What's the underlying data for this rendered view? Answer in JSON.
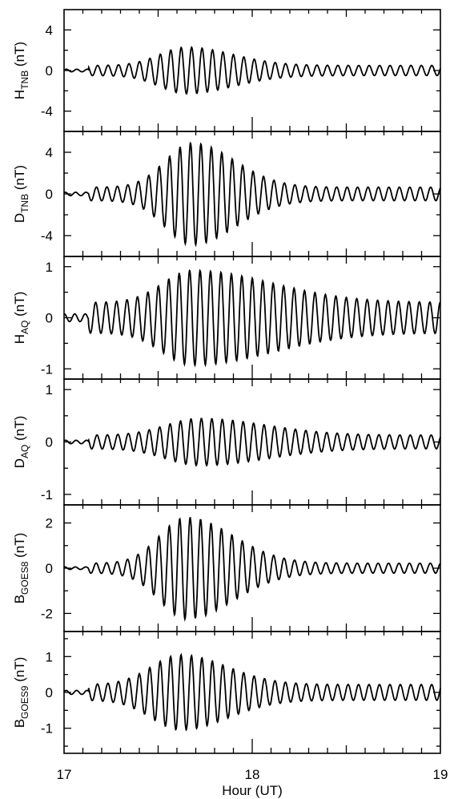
{
  "chart_data": {
    "type": "line",
    "xlabel": "Hour (UT)",
    "x_ticks": [
      "17",
      "18",
      "19"
    ],
    "xlim": [
      17,
      19
    ],
    "line_color": "#000000",
    "panels": [
      {
        "ylabel_main": "H",
        "ylabel_sub": "TNB",
        "ylabel_unit": " (nT)",
        "ylim": [
          -6,
          6
        ],
        "yticks": [
          4,
          0,
          -4
        ],
        "ytick_labels": [
          "4",
          "0",
          "-4"
        ],
        "waveform": {
          "period_hours": 0.0555,
          "phase": 0.2,
          "onset_hour": 17.13,
          "peak_amplitude": 2.3,
          "peak_hour": 17.65,
          "rise_width": 0.2,
          "background_amplitude": 0.5,
          "decay_width": 0.35
        }
      },
      {
        "ylabel_main": "D",
        "ylabel_sub": "TNB",
        "ylabel_unit": " (nT)",
        "ylim": [
          -6,
          6
        ],
        "yticks": [
          4,
          0,
          -4
        ],
        "ytick_labels": [
          "4",
          "0",
          "-4"
        ],
        "waveform": {
          "period_hours": 0.0555,
          "phase": 0.9,
          "onset_hour": 17.13,
          "peak_amplitude": 4.9,
          "peak_hour": 17.68,
          "rise_width": 0.2,
          "background_amplitude": 0.65,
          "decay_width": 0.32
        }
      },
      {
        "ylabel_main": "H",
        "ylabel_sub": "AQ",
        "ylabel_unit": " (nT)",
        "ylim": [
          -1.2,
          1.2
        ],
        "yticks": [
          1,
          0,
          -1
        ],
        "ytick_labels": [
          "1",
          "0",
          "-1"
        ],
        "waveform": {
          "period_hours": 0.0555,
          "phase": 1.4,
          "onset_hour": 17.13,
          "peak_amplitude": 0.93,
          "peak_hour": 17.68,
          "rise_width": 0.22,
          "background_amplitude": 0.3,
          "decay_width": 0.6
        }
      },
      {
        "ylabel_main": "D",
        "ylabel_sub": "AQ",
        "ylabel_unit": " (nT)",
        "ylim": [
          -1.2,
          1.2
        ],
        "yticks": [
          1,
          0,
          -1
        ],
        "ytick_labels": [
          "1",
          "0",
          "-1"
        ],
        "waveform": {
          "period_hours": 0.0555,
          "phase": 0.6,
          "onset_hour": 17.13,
          "peak_amplitude": 0.45,
          "peak_hour": 17.72,
          "rise_width": 0.25,
          "background_amplitude": 0.13,
          "decay_width": 0.5
        }
      },
      {
        "ylabel_main": "B",
        "ylabel_sub": "GOES8",
        "ylabel_unit": " (nT)",
        "ylim": [
          -2.8,
          2.8
        ],
        "yticks": [
          2,
          0,
          -2
        ],
        "ytick_labels": [
          "2",
          "0",
          "-2"
        ],
        "waveform": {
          "period_hours": 0.0555,
          "phase": 1.1,
          "onset_hour": 17.13,
          "peak_amplitude": 2.25,
          "peak_hour": 17.65,
          "rise_width": 0.2,
          "background_amplitude": 0.22,
          "decay_width": 0.35
        }
      },
      {
        "ylabel_main": "B",
        "ylabel_sub": "GOES9",
        "ylabel_unit": " (nT)",
        "ylim": [
          -1.7,
          1.7
        ],
        "yticks": [
          1,
          0,
          -1
        ],
        "ytick_labels": [
          "1",
          "0",
          "-1"
        ],
        "waveform": {
          "period_hours": 0.0555,
          "phase": 0.3,
          "onset_hour": 17.13,
          "peak_amplitude": 1.05,
          "peak_hour": 17.62,
          "rise_width": 0.22,
          "background_amplitude": 0.22,
          "decay_width": 0.35
        }
      }
    ]
  }
}
